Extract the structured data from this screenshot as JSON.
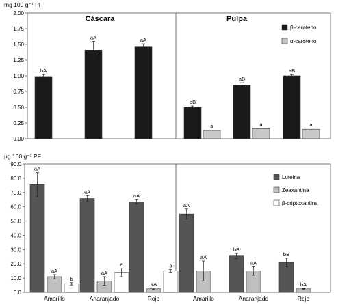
{
  "chart_data": [
    {
      "type": "bar",
      "ylabel": "mg 100 g⁻¹ PF",
      "ylim": [
        0,
        2.0
      ],
      "yticks": [
        "0.00",
        "0.25",
        "0.50",
        "0.75",
        "1.00",
        "1.25",
        "1.50",
        "1.75",
        "2.00"
      ],
      "sections": [
        "Cáscara",
        "Pulpa"
      ],
      "legend_position": "top-right",
      "series": [
        {
          "name": "β-caroteno",
          "color": "#1a1a1a",
          "values": [
            0.99,
            1.41,
            1.46,
            0.5,
            0.85,
            1.0
          ],
          "errors": [
            0.03,
            0.14,
            0.05,
            0.02,
            0.04,
            0.02
          ],
          "labels": [
            "bA",
            "aA",
            "aA",
            "bB",
            "aB",
            "aB"
          ]
        },
        {
          "name": "α-caroteno",
          "color": "#c8c8c8",
          "values": [
            null,
            null,
            null,
            0.13,
            0.16,
            0.15
          ],
          "errors": [
            null,
            null,
            null,
            0.0,
            0.0,
            0.0
          ],
          "labels": [
            "",
            "",
            "",
            "a",
            "a",
            "a"
          ]
        }
      ]
    },
    {
      "type": "bar",
      "ylabel": "µg 100 g⁻¹ PF",
      "ylim": [
        0,
        90
      ],
      "yticks": [
        "0.0",
        "10.0",
        "20.0",
        "30.0",
        "40.0",
        "50.0",
        "60.0",
        "70.0",
        "80.0",
        "90.0"
      ],
      "categories": [
        "Amarillo",
        "Anaranjado",
        "Rojo",
        "Amarillo",
        "Anaranjado",
        "Rojo"
      ],
      "legend_position": "top-right",
      "series": [
        {
          "name": "Luteina",
          "color": "#555555",
          "values": [
            75.5,
            65.8,
            63.5,
            55.0,
            25.5,
            21.0
          ],
          "errors": [
            8.5,
            2.0,
            1.5,
            3.5,
            1.8,
            3.0
          ],
          "labels": [
            "aA",
            "aA",
            "aA",
            "aA",
            "bB",
            "bB"
          ]
        },
        {
          "name": "Zeaxantina",
          "color": "#c0c0c0",
          "values": [
            11.0,
            8.0,
            2.5,
            15.0,
            15.0,
            2.5
          ],
          "errors": [
            1.5,
            3.0,
            0.5,
            7.0,
            3.0,
            0.3
          ],
          "labels": [
            "aA",
            "aA",
            "aA",
            "aA",
            "aA",
            "bA"
          ]
        },
        {
          "name": "β-criptoxantina",
          "color": "#ffffff",
          "values": [
            6.0,
            14.0,
            15.0,
            null,
            null,
            null
          ],
          "errors": [
            0.8,
            3.0,
            1.0,
            null,
            null,
            null
          ],
          "labels": [
            "b",
            "a",
            "a",
            "",
            "",
            ""
          ]
        }
      ]
    }
  ]
}
